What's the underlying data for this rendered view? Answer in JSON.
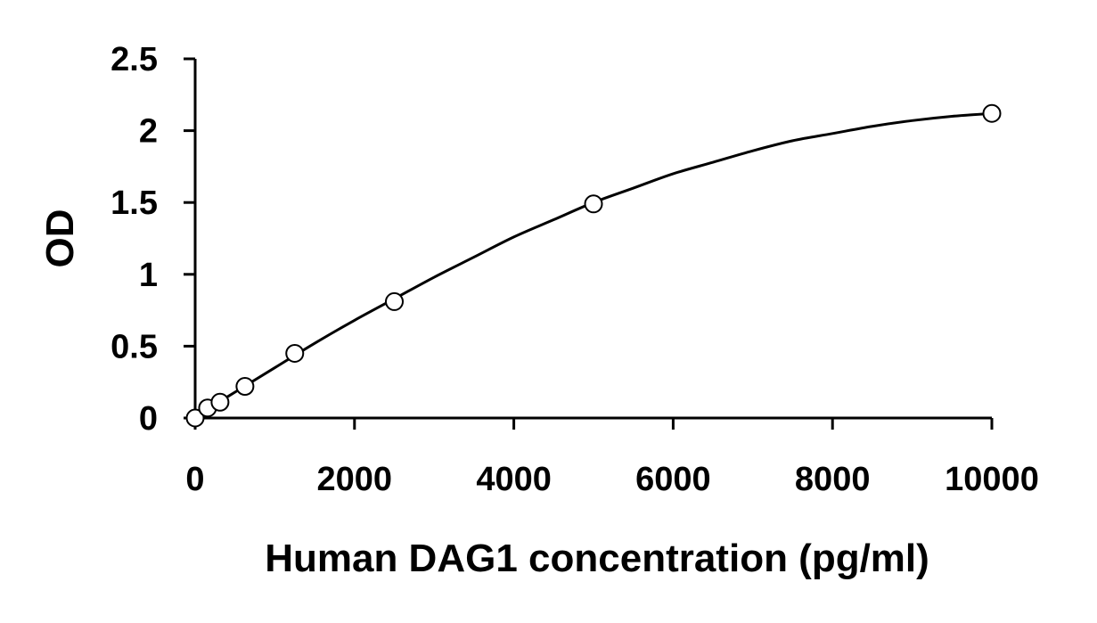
{
  "chart_data": {
    "type": "scatter",
    "title": "",
    "xlabel": "Human DAG1 concentration (pg/ml)",
    "ylabel": "OD",
    "xlim": [
      0,
      10000
    ],
    "ylim": [
      0,
      2.5
    ],
    "x_ticks": [
      0,
      2000,
      4000,
      6000,
      8000,
      10000
    ],
    "x_tick_labels": [
      "0",
      "2000",
      "4000",
      "6000",
      "8000",
      "10000"
    ],
    "y_ticks": [
      0,
      0.5,
      1,
      1.5,
      2,
      2.5
    ],
    "y_tick_labels": [
      "0",
      "0.5",
      "1",
      "1.5",
      "2",
      "2.5"
    ],
    "grid": false,
    "legend": "none",
    "series": [
      {
        "marker": "open-circle",
        "x": [
          0,
          156,
          312,
          625,
          1250,
          2500,
          5000,
          10000
        ],
        "y": [
          0.0,
          0.07,
          0.11,
          0.22,
          0.45,
          0.81,
          1.49,
          2.12
        ]
      }
    ],
    "fit": {
      "type": "line",
      "curve": "smooth fitted standard curve",
      "x": [
        0,
        500,
        1000,
        1500,
        2000,
        2500,
        3000,
        3500,
        4000,
        4500,
        5000,
        5500,
        6000,
        6500,
        7000,
        7500,
        8000,
        8500,
        9000,
        9500,
        10000
      ],
      "y": [
        0.01,
        0.18,
        0.35,
        0.52,
        0.68,
        0.83,
        0.98,
        1.12,
        1.26,
        1.38,
        1.5,
        1.6,
        1.7,
        1.78,
        1.86,
        1.93,
        1.98,
        2.03,
        2.07,
        2.1,
        2.12
      ]
    },
    "colors": {
      "line": "#000000",
      "marker_stroke": "#000000",
      "marker_fill": "#ffffff"
    }
  }
}
